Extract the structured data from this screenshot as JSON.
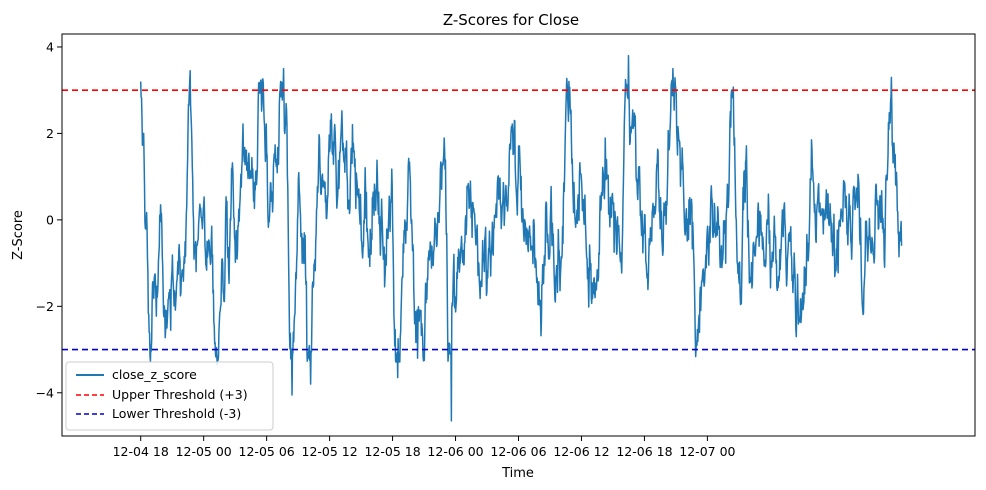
{
  "chart_data": {
    "type": "line",
    "title": "Z-Scores for Close",
    "xlabel": "Time",
    "ylabel": "Z-Score",
    "x_range_hours": [
      -7.5,
      79.5
    ],
    "x_start_hours": 0,
    "x_end_hours": 72.5,
    "ylim": [
      -5.0,
      4.3
    ],
    "x_ticks": [
      {
        "hours": 0,
        "label": "12-04 18"
      },
      {
        "hours": 6,
        "label": "12-05 00"
      },
      {
        "hours": 12,
        "label": "12-05 06"
      },
      {
        "hours": 18,
        "label": "12-05 12"
      },
      {
        "hours": 24,
        "label": "12-05 18"
      },
      {
        "hours": 30,
        "label": "12-06 00"
      },
      {
        "hours": 36,
        "label": "12-06 06"
      },
      {
        "hours": 42,
        "label": "12-06 12"
      },
      {
        "hours": 48,
        "label": "12-06 18"
      },
      {
        "hours": 54,
        "label": "12-07 00"
      }
    ],
    "y_ticks": [
      {
        "value": 4,
        "label": "4"
      },
      {
        "value": 2,
        "label": "2"
      },
      {
        "value": 0,
        "label": "0"
      },
      {
        "value": -2,
        "label": "−2"
      },
      {
        "value": -4,
        "label": "−4"
      }
    ],
    "series": [
      {
        "name": "close_z_score",
        "color": "#1f77b4",
        "style": "solid"
      },
      {
        "name": "Upper Threshold (+3)",
        "color": "#ff0000",
        "style": "dashed",
        "value": 3
      },
      {
        "name": "Lower Threshold (-3)",
        "color": "#0000cc",
        "style": "dashed",
        "value": -3
      }
    ],
    "legend_location": "lower-left",
    "key_points": [
      {
        "hours": 0.0,
        "value": 3.2
      },
      {
        "hours": 0.3,
        "value": 2.0
      },
      {
        "hours": 0.6,
        "value": -0.2
      },
      {
        "hours": 0.8,
        "value": -2.6
      },
      {
        "hours": 2.5,
        "value": -2.5
      },
      {
        "hours": 4.7,
        "value": 3.45
      },
      {
        "hours": 7.3,
        "value": -3.35
      },
      {
        "hours": 11.6,
        "value": 3.25
      },
      {
        "hours": 13.6,
        "value": 3.5
      },
      {
        "hours": 14.4,
        "value": -4.05
      },
      {
        "hours": 16.2,
        "value": -3.8
      },
      {
        "hours": 24.5,
        "value": -3.65
      },
      {
        "hours": 26.4,
        "value": -3.2
      },
      {
        "hours": 27.0,
        "value": -3.25
      },
      {
        "hours": 29.6,
        "value": -4.65
      },
      {
        "hours": 40.8,
        "value": 3.2
      },
      {
        "hours": 46.5,
        "value": 3.8
      },
      {
        "hours": 50.7,
        "value": 3.5
      },
      {
        "hours": 53.0,
        "value": -2.9
      },
      {
        "hours": 56.3,
        "value": 3.0
      },
      {
        "hours": 72.0,
        "value": 1.1
      },
      {
        "hours": 72.5,
        "value": -0.6
      }
    ]
  }
}
